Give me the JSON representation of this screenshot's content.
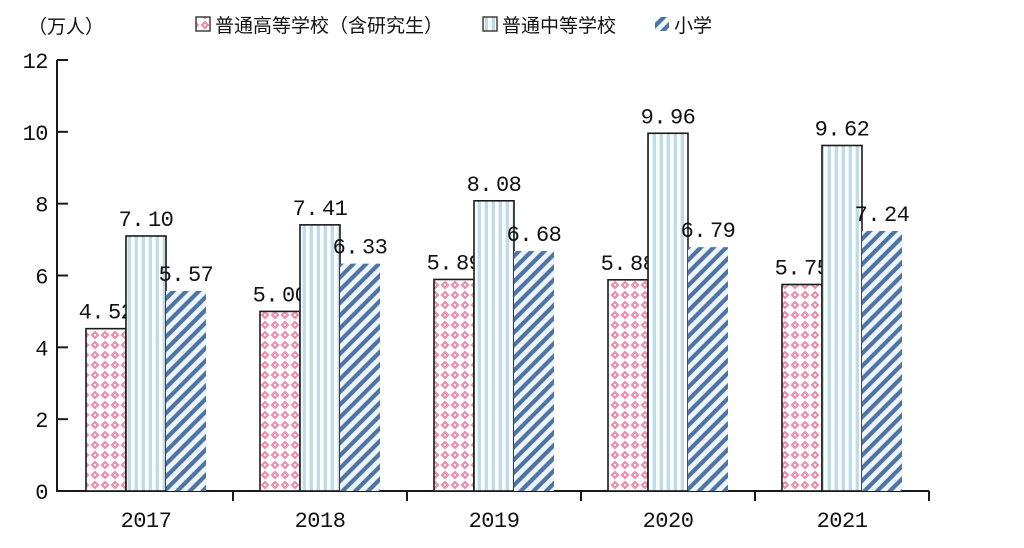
{
  "unit_label": "（万人）",
  "palette": {
    "series1_pink": "#ee8fb0",
    "series2_stripe_blue": "#bedde6",
    "series3_diag_blue": "#4f73a3",
    "series3_bg": "#eef5f8",
    "axis": "#1a1a1a",
    "text": "#111111",
    "background": "#ffffff"
  },
  "chart_data": {
    "type": "bar",
    "title": "",
    "xlabel": "",
    "ylabel": "（万人）",
    "categories": [
      "2017",
      "2018",
      "2019",
      "2020",
      "2021"
    ],
    "series": [
      {
        "name": "普通高等学校（含研究生）",
        "pattern": "diamond",
        "values": [
          4.52,
          5.0,
          5.89,
          5.88,
          5.75
        ]
      },
      {
        "name": "普通中等学校",
        "pattern": "vertical-stripes",
        "values": [
          7.1,
          7.41,
          8.08,
          9.96,
          9.62
        ]
      },
      {
        "name": "小学",
        "pattern": "diagonal-stripes",
        "values": [
          5.57,
          6.33,
          6.68,
          6.79,
          7.24
        ]
      }
    ],
    "ylim": [
      0,
      12
    ],
    "yticks": [
      0,
      2,
      4,
      6,
      8,
      10,
      12
    ],
    "grid": false,
    "legend_position": "top",
    "value_labels": true,
    "value_label_decimals": 2
  }
}
